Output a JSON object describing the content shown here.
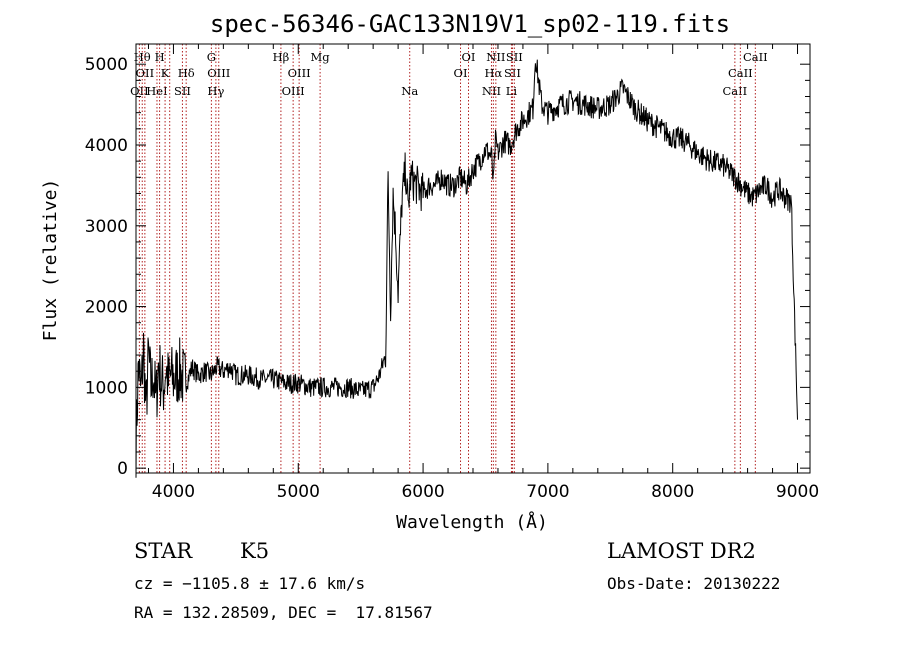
{
  "chart_data": {
    "type": "line",
    "title": "spec-56346-GAC133N19V1_sp02-119.fits",
    "xlabel": "Wavelength (Å)",
    "ylabel": "Flux (relative)",
    "xlim": [
      3700,
      9100
    ],
    "ylim": [
      -60,
      5250
    ],
    "xticks": [
      4000,
      5000,
      6000,
      7000,
      8000,
      9000
    ],
    "yticks": [
      0,
      1000,
      2000,
      3000,
      4000,
      5000
    ],
    "grid": false,
    "series": [
      {
        "line_color": "#000000",
        "x": [
          3700,
          3720,
          3740,
          3760,
          3780,
          3800,
          3820,
          3840,
          3860,
          3880,
          3900,
          3920,
          3940,
          3960,
          3980,
          4000,
          4050,
          4100,
          4150,
          4200,
          4250,
          4300,
          4350,
          4400,
          4450,
          4500,
          4600,
          4700,
          4800,
          4900,
          5000,
          5100,
          5200,
          5300,
          5400,
          5500,
          5600,
          5650,
          5700,
          5720,
          5740,
          5760,
          5780,
          5800,
          5830,
          5860,
          5880,
          5900,
          5950,
          6000,
          6050,
          6100,
          6150,
          6200,
          6250,
          6300,
          6350,
          6400,
          6450,
          6500,
          6550,
          6563,
          6580,
          6600,
          6650,
          6700,
          6750,
          6800,
          6850,
          6880,
          6900,
          6950,
          7000,
          7100,
          7200,
          7300,
          7400,
          7500,
          7600,
          7700,
          7800,
          7900,
          8000,
          8100,
          8200,
          8300,
          8400,
          8500,
          8550,
          8600,
          8650,
          8700,
          8750,
          8800,
          8850,
          8900,
          8950,
          9000
        ],
        "y": [
          300,
          1300,
          900,
          1500,
          700,
          1400,
          1000,
          1200,
          800,
          1300,
          1100,
          1000,
          1250,
          1050,
          1150,
          1100,
          1200,
          1050,
          1250,
          1150,
          1200,
          1150,
          1250,
          1200,
          1250,
          1150,
          1150,
          1100,
          1100,
          1050,
          1050,
          1000,
          1000,
          1000,
          1000,
          950,
          1000,
          1150,
          1400,
          3600,
          2000,
          3400,
          2900,
          2200,
          3300,
          3700,
          3200,
          3600,
          3500,
          3400,
          3500,
          3500,
          3600,
          3500,
          3500,
          3600,
          3500,
          3700,
          3800,
          3950,
          3850,
          3500,
          4050,
          3900,
          4050,
          4000,
          4200,
          4300,
          4400,
          4450,
          5100,
          4500,
          4400,
          4500,
          4550,
          4500,
          4450,
          4500,
          4700,
          4450,
          4300,
          4200,
          4100,
          4050,
          3900,
          3800,
          3750,
          3600,
          3500,
          3400,
          3350,
          3450,
          3500,
          3350,
          3450,
          3350,
          3300,
          600
        ]
      }
    ],
    "line_markers": [
      {
        "wl": 3727,
        "row": 3,
        "label": "OII"
      },
      {
        "wl": 3750,
        "row": 1,
        "label": "Hθ"
      },
      {
        "wl": 3771,
        "row": 2,
        "label": "OII"
      },
      {
        "wl": 3868,
        "row": 3,
        "label": "HeI"
      },
      {
        "wl": 3889,
        "row": 1,
        "label": "H"
      },
      {
        "wl": 3933,
        "row": 2,
        "label": "K"
      },
      {
        "wl": 3970,
        "row": 1,
        "label": ""
      },
      {
        "wl": 4072,
        "row": 3,
        "label": "SII"
      },
      {
        "wl": 4102,
        "row": 2,
        "label": "Hδ"
      },
      {
        "wl": 4304,
        "row": 1,
        "label": "G"
      },
      {
        "wl": 4340,
        "row": 3,
        "label": "Hγ"
      },
      {
        "wl": 4363,
        "row": 2,
        "label": "OIII"
      },
      {
        "wl": 4861,
        "row": 1,
        "label": "Hβ"
      },
      {
        "wl": 4959,
        "row": 3,
        "label": "OIII"
      },
      {
        "wl": 5007,
        "row": 2,
        "label": "OIII"
      },
      {
        "wl": 5175,
        "row": 1,
        "label": "Mg"
      },
      {
        "wl": 5893,
        "row": 3,
        "label": "Na"
      },
      {
        "wl": 6300,
        "row": 2,
        "label": "OI"
      },
      {
        "wl": 6364,
        "row": 1,
        "label": "OI"
      },
      {
        "wl": 6548,
        "row": 3,
        "label": "NII"
      },
      {
        "wl": 6563,
        "row": 2,
        "label": "Hα"
      },
      {
        "wl": 6583,
        "row": 1,
        "label": "NII"
      },
      {
        "wl": 6708,
        "row": 3,
        "label": "Li"
      },
      {
        "wl": 6716,
        "row": 2,
        "label": "SII"
      },
      {
        "wl": 6731,
        "row": 1,
        "label": "SII"
      },
      {
        "wl": 8498,
        "row": 3,
        "label": "CaII"
      },
      {
        "wl": 8542,
        "row": 2,
        "label": "CaII"
      },
      {
        "wl": 8662,
        "row": 1,
        "label": "CaII"
      }
    ],
    "marker_color": "#b22222"
  },
  "info": {
    "class_label": "STAR",
    "subclass": "K5",
    "survey": "LAMOST DR2",
    "redshift": "cz = −1105.8 ± 17.6 km/s",
    "obs_date": "Obs-Date: 20130222",
    "coords": "RA = 132.28509, DEC =  17.81567"
  }
}
